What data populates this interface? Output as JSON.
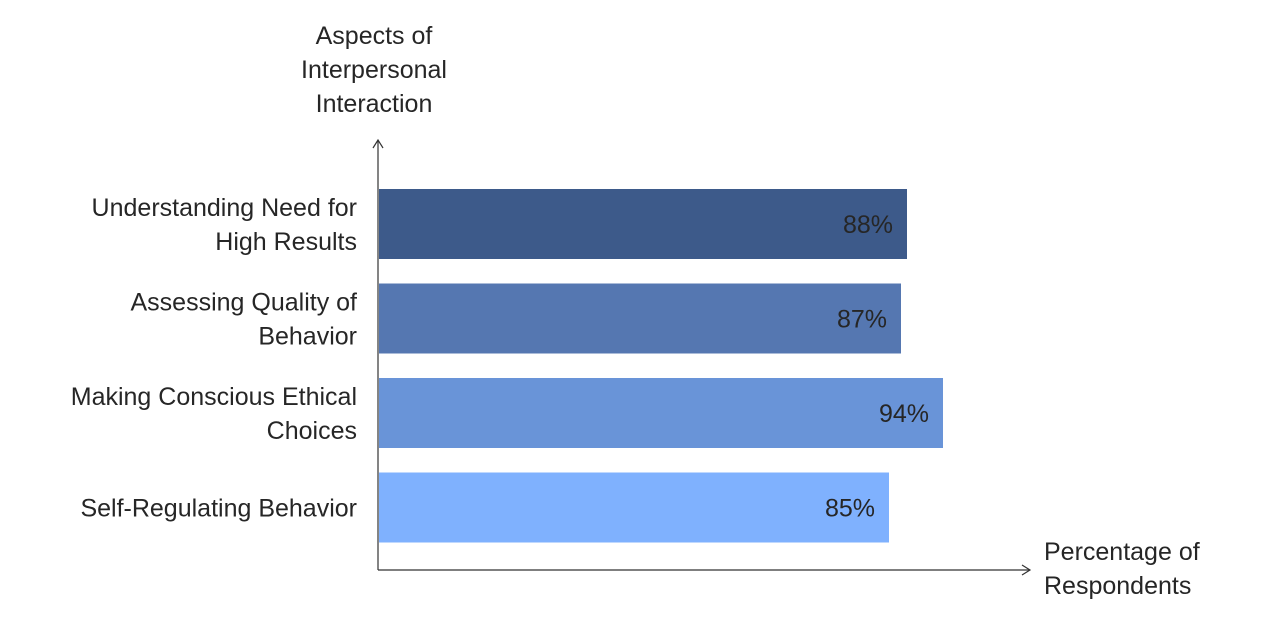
{
  "chart_data": {
    "type": "bar",
    "orientation": "horizontal",
    "ylabel": [
      "Aspects of",
      "Interpersonal",
      "Interaction"
    ],
    "xlabel": [
      "Percentage of",
      "Respondents"
    ],
    "categories": [
      [
        "Understanding Need for",
        "High Results"
      ],
      [
        "Assessing Quality of",
        "Behavior"
      ],
      [
        "Making Conscious Ethical",
        "Choices"
      ],
      [
        "Self-Regulating Behavior"
      ]
    ],
    "values": [
      88,
      87,
      94,
      85
    ],
    "value_labels": [
      "88%",
      "87%",
      "94%",
      "85%"
    ],
    "colors": [
      "#3d5a8a",
      "#5577b1",
      "#6994d8",
      "#7fb1fe"
    ],
    "xlim": [
      0,
      100
    ],
    "grid": false,
    "legend": "none"
  }
}
